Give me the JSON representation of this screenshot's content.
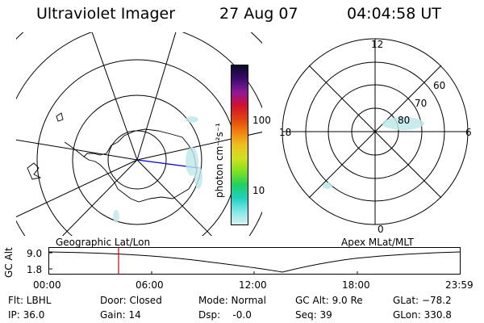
{
  "header": {
    "instrument": "Ultraviolet Imager",
    "date": "27 Aug 07",
    "time": "04:04:58 UT"
  },
  "colorbar": {
    "unit_label": "photon cm⁻²s⁻¹",
    "tick_100": "100",
    "tick_10": "10",
    "colors": [
      "#0a0a2a",
      "#3a0a6a",
      "#8a1a9a",
      "#d01030",
      "#e04010",
      "#f08010",
      "#f0c020",
      "#d0e020",
      "#80e020",
      "#20d060",
      "#20d0c0",
      "#80e8e8",
      "#d8f0f0"
    ]
  },
  "polar_plot": {
    "mlt_labels": [
      "12",
      "18",
      "6",
      "0"
    ],
    "lat_labels": [
      "60",
      "70",
      "80"
    ]
  },
  "map_labels": {
    "left": "Geographic Lat/Lon",
    "right": "Apex MLat/MLT"
  },
  "altitude_plot": {
    "ylabel": "GC Alt",
    "yticks": [
      "9.0",
      "1.8"
    ],
    "xticks": [
      "00:00",
      "06:00",
      "12:00",
      "18:00",
      "23:59"
    ],
    "marker_color": "#cc0000"
  },
  "info": {
    "flt": "Flt: LBHL",
    "ip": "IP: 36.0",
    "door": "Door: Closed",
    "gain": "Gain: 14",
    "mode": "Mode: Normal",
    "dsp": "Dsp:    -0.0",
    "gcalt": "GC Alt: 9.0 Re",
    "seq": "Seq: 39",
    "glat": "GLat: −78.2",
    "glon": "GLon: 330.8"
  }
}
